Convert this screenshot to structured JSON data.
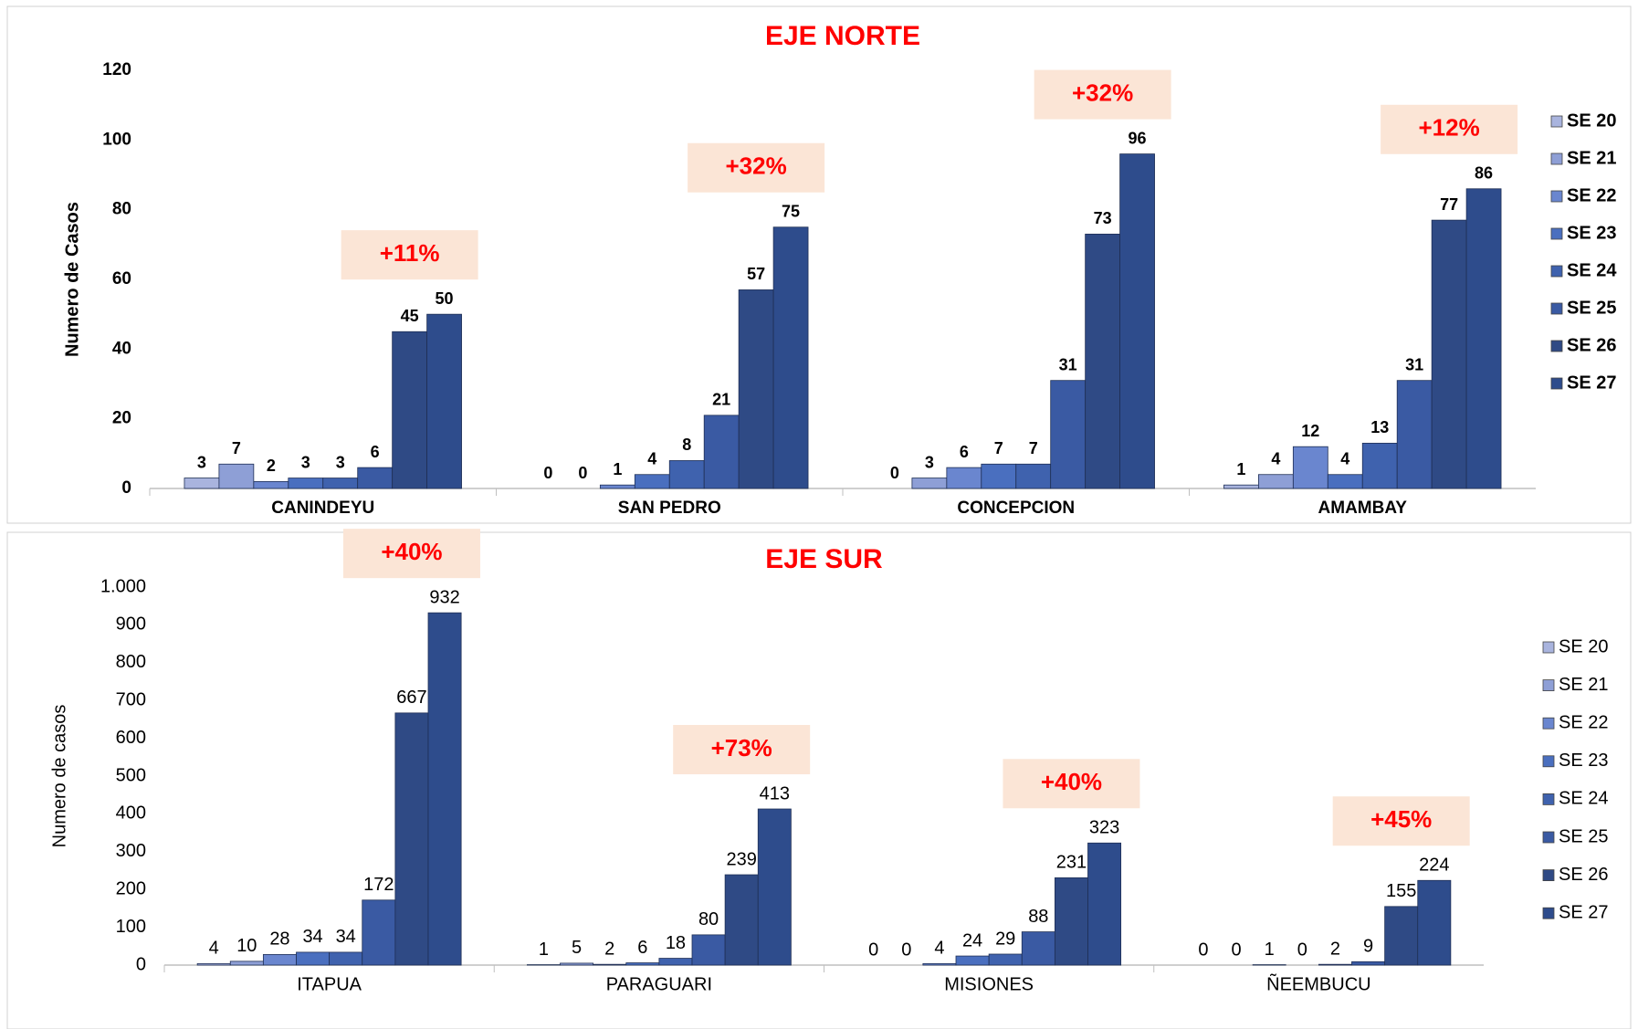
{
  "chart_data": [
    {
      "type": "bar",
      "title": "EJE NORTE",
      "y_label": "Numero de Casos",
      "categories": [
        "CANINDEYU",
        "SAN PEDRO",
        "CONCEPCION",
        "AMAMBAY"
      ],
      "annotations": [
        "+11%",
        "+32%",
        "+32%",
        "+12%"
      ],
      "ylim": [
        0,
        120
      ],
      "yticks": [
        0,
        20,
        40,
        60,
        80,
        100,
        120
      ],
      "grid": false,
      "legend": "right",
      "series": [
        {
          "name": "SE 20",
          "color": "#a9b4de",
          "values": [
            3,
            0,
            0,
            1
          ]
        },
        {
          "name": "SE 21",
          "color": "#8e9fd6",
          "values": [
            7,
            0,
            3,
            4
          ]
        },
        {
          "name": "SE 22",
          "color": "#6a86cf",
          "values": [
            2,
            1,
            6,
            12
          ]
        },
        {
          "name": "SE 23",
          "color": "#4a6fbf",
          "values": [
            3,
            4,
            7,
            4
          ]
        },
        {
          "name": "SE 24",
          "color": "#3f62ae",
          "values": [
            3,
            8,
            7,
            13
          ]
        },
        {
          "name": "SE 25",
          "color": "#3a5aa3",
          "values": [
            6,
            21,
            31,
            31
          ]
        },
        {
          "name": "SE 26",
          "color": "#2f4a85",
          "values": [
            45,
            57,
            73,
            77
          ]
        },
        {
          "name": "SE 27",
          "color": "#2e4c8c",
          "values": [
            50,
            75,
            96,
            86
          ]
        }
      ]
    },
    {
      "type": "bar",
      "title": "EJE SUR",
      "y_label": "Numero de casos",
      "categories": [
        "ITAPUA",
        "PARAGUARI",
        "MISIONES",
        "ÑEEMBUCU"
      ],
      "annotations": [
        "+40%",
        "+73%",
        "+40%",
        "+45%"
      ],
      "ylim": [
        0,
        1000
      ],
      "yticks": [
        0,
        100,
        200,
        300,
        400,
        500,
        600,
        700,
        800,
        900,
        {
          "value": 1000,
          "label": "1.000"
        }
      ],
      "grid": false,
      "legend": "right",
      "series": [
        {
          "name": "SE 20",
          "color": "#a9b4de",
          "values": [
            4,
            1,
            0,
            0
          ]
        },
        {
          "name": "SE 21",
          "color": "#8e9fd6",
          "values": [
            10,
            5,
            0,
            0
          ]
        },
        {
          "name": "SE 22",
          "color": "#6a86cf",
          "values": [
            28,
            2,
            4,
            1
          ]
        },
        {
          "name": "SE 23",
          "color": "#4a6fbf",
          "values": [
            34,
            6,
            24,
            0
          ]
        },
        {
          "name": "SE 24",
          "color": "#3f62ae",
          "values": [
            34,
            18,
            29,
            2
          ]
        },
        {
          "name": "SE 25",
          "color": "#3a5aa3",
          "values": [
            172,
            80,
            88,
            9
          ]
        },
        {
          "name": "SE 26",
          "color": "#2f4a85",
          "values": [
            667,
            239,
            231,
            155
          ]
        },
        {
          "name": "SE 27",
          "color": "#2e4c8c",
          "values": [
            932,
            413,
            323,
            224
          ]
        }
      ]
    }
  ]
}
